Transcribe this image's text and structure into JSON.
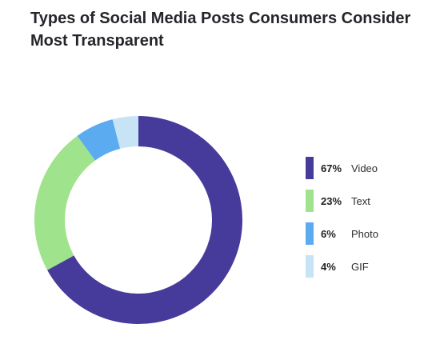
{
  "title_lines": [
    "Types of Social Media Posts Consumers Consider",
    "Most Transparent"
  ],
  "chart_data": {
    "type": "pie",
    "variant": "donut",
    "title": "Types of Social Media Posts Consumers Consider Most Transparent",
    "categories": [
      "Video",
      "Text",
      "Photo",
      "GIF"
    ],
    "values": [
      67,
      23,
      6,
      4
    ],
    "unit": "%",
    "colors": [
      "#463b9a",
      "#9fe38c",
      "#5aabf0",
      "#c7e4f7"
    ],
    "legend_position": "right",
    "legend_labels": [
      "67%",
      "23%",
      "6%",
      "4%"
    ]
  }
}
